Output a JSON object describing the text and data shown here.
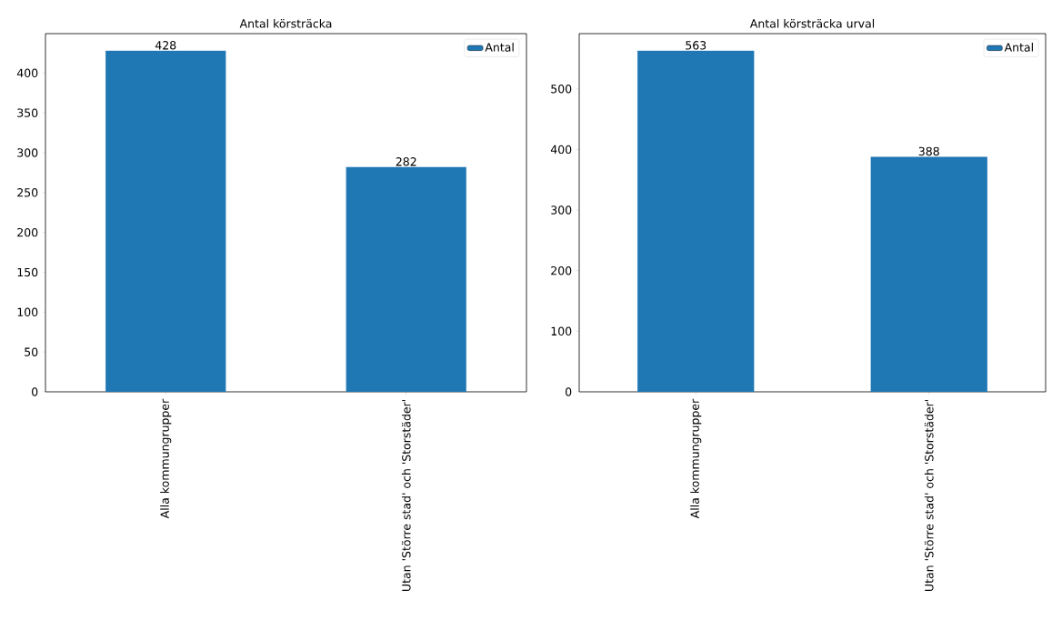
{
  "chart_data": [
    {
      "type": "bar",
      "title": "Antal körsträcka",
      "categories": [
        "Alla kommungrupper",
        "Utan 'Större stad' och 'Storstäder'"
      ],
      "series": [
        {
          "name": "Antal",
          "color": "#1f77b4",
          "values": [
            428,
            282
          ]
        }
      ],
      "ylim": [
        0,
        449.4
      ],
      "yticks": [
        0,
        50,
        100,
        150,
        200,
        250,
        300,
        350,
        400
      ],
      "legend": "top right",
      "data_labels": true
    },
    {
      "type": "bar",
      "title": "Antal körsträcka urval",
      "categories": [
        "Alla kommungrupper",
        "Utan 'Större stad' och 'Storstäder'"
      ],
      "series": [
        {
          "name": "Antal",
          "color": "#1f77b4",
          "values": [
            563,
            388
          ]
        }
      ],
      "ylim": [
        0,
        591.15
      ],
      "yticks": [
        0,
        100,
        200,
        300,
        400,
        500
      ],
      "legend": "top right",
      "data_labels": true
    }
  ]
}
